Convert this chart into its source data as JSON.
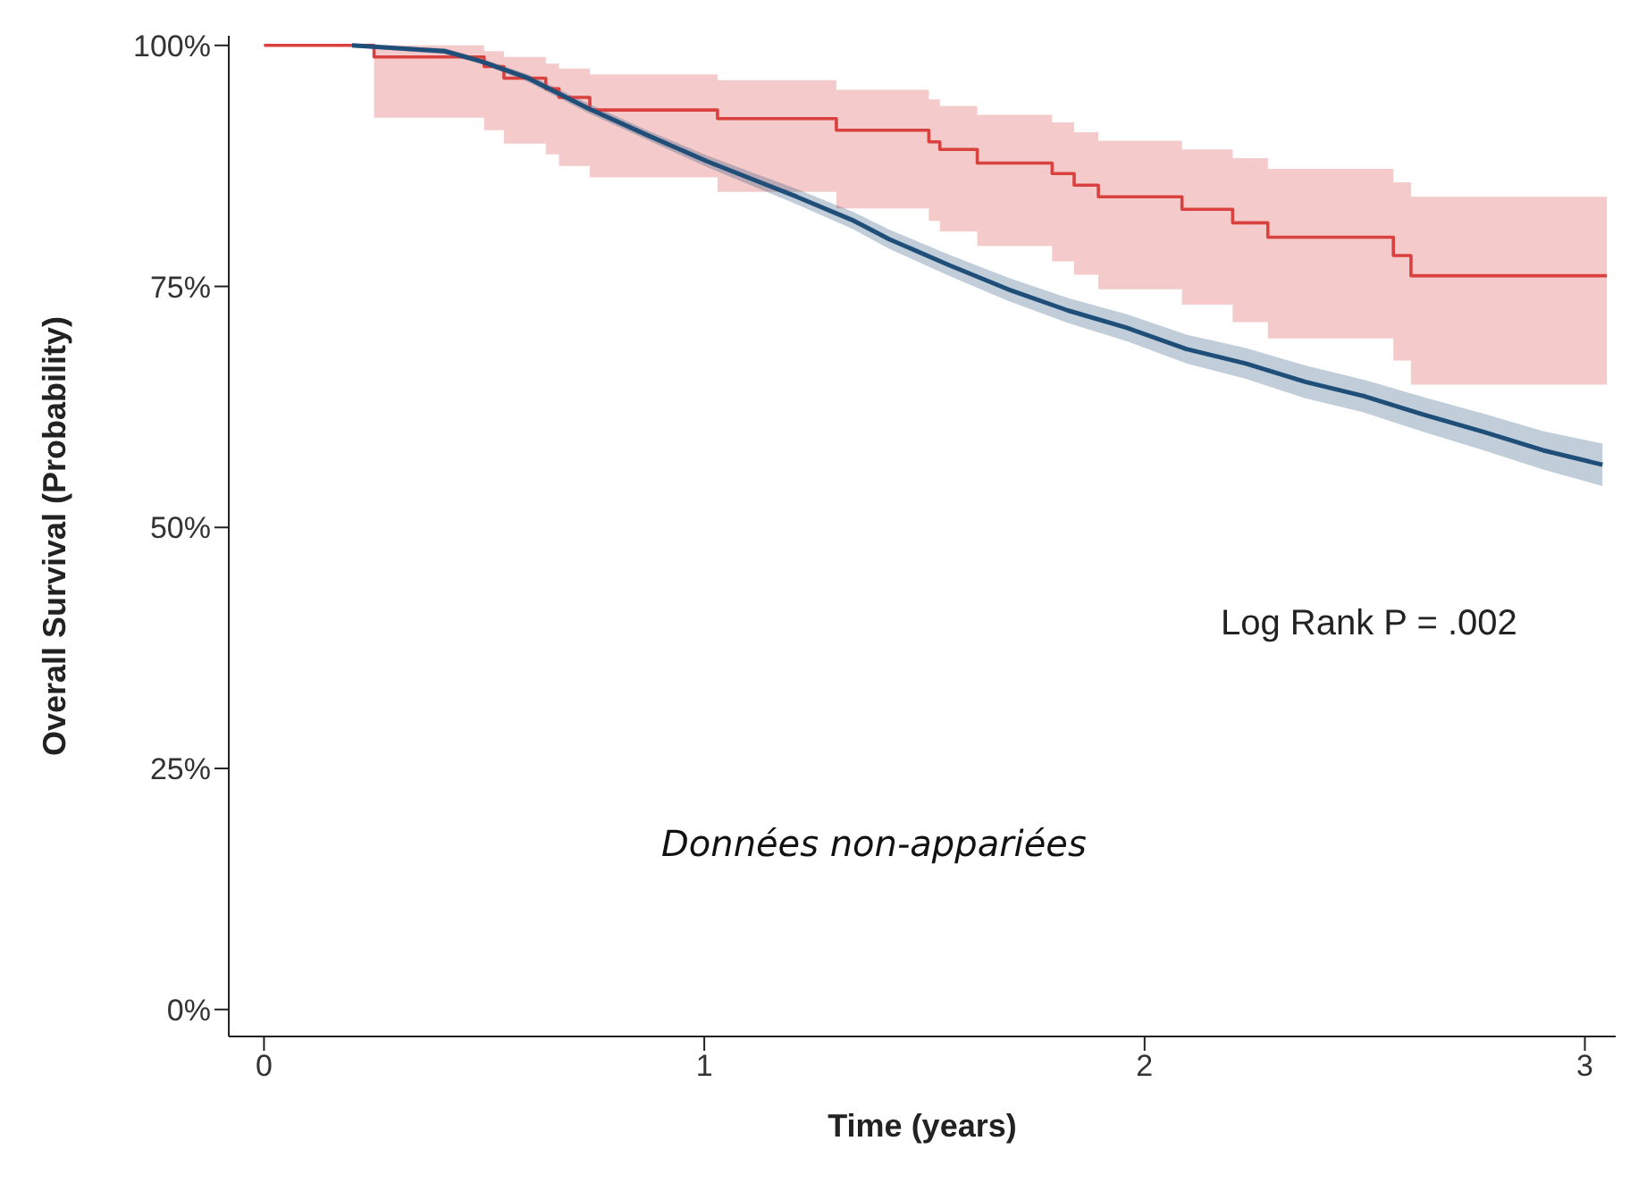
{
  "chart_data": {
    "type": "line",
    "xlabel": "Time (years)",
    "ylabel": "Overall Survival (Probability)",
    "annotations": [
      "Log Rank P = .002",
      "Données non-appariées"
    ],
    "xlim": [
      -0.08,
      3.07
    ],
    "ylim": [
      -0.028,
      1.01
    ],
    "xticks": [
      0,
      1,
      2,
      3
    ],
    "yticks": [
      {
        "value": 0,
        "label": "0%"
      },
      {
        "value": 0.25,
        "label": "25%"
      },
      {
        "value": 0.5,
        "label": "50%"
      },
      {
        "value": 0.75,
        "label": "75%"
      },
      {
        "value": 1,
        "label": "100%"
      }
    ],
    "grid": false,
    "legend": false,
    "marker": "none",
    "series": [
      {
        "type": "step",
        "color": "#d9413f",
        "x": [
          0,
          0.25,
          0.5,
          0.545,
          0.64,
          0.67,
          0.74,
          1.03,
          1.3,
          1.51,
          1.535,
          1.62,
          1.79,
          1.84,
          1.895,
          2.085,
          2.2,
          2.28,
          2.565,
          2.605,
          3.05
        ],
        "values": [
          1.0,
          0.988,
          0.978,
          0.966,
          0.955,
          0.946,
          0.933,
          0.924,
          0.912,
          0.9,
          0.892,
          0.878,
          0.867,
          0.855,
          0.843,
          0.83,
          0.816,
          0.801,
          0.782,
          0.761,
          0.761
        ],
        "upper": [
          1.0,
          1.0,
          0.994,
          0.988,
          0.981,
          0.976,
          0.97,
          0.964,
          0.954,
          0.944,
          0.937,
          0.928,
          0.92,
          0.91,
          0.901,
          0.892,
          0.883,
          0.872,
          0.858,
          0.843,
          0.843
        ],
        "lower": [
          1.0,
          0.925,
          0.912,
          0.898,
          0.887,
          0.875,
          0.863,
          0.848,
          0.831,
          0.818,
          0.807,
          0.792,
          0.776,
          0.762,
          0.747,
          0.731,
          0.713,
          0.696,
          0.673,
          0.648,
          0.648
        ]
      },
      {
        "color": "#1f4e79",
        "x": [
          0.2,
          0.41,
          0.49,
          0.6,
          0.735,
          0.87,
          1.005,
          1.11,
          1.21,
          1.34,
          1.42,
          1.556,
          1.69,
          1.826,
          1.96,
          2.095,
          2.23,
          2.365,
          2.5,
          2.634,
          2.77,
          2.905,
          3.04
        ],
        "values": [
          1.0,
          0.994,
          0.984,
          0.966,
          0.935,
          0.907,
          0.88,
          0.861,
          0.843,
          0.818,
          0.799,
          0.772,
          0.747,
          0.725,
          0.707,
          0.685,
          0.67,
          0.651,
          0.636,
          0.617,
          0.599,
          0.58,
          0.565
        ],
        "upper": [
          1.0,
          0.997,
          0.987,
          0.97,
          0.94,
          0.912,
          0.886,
          0.868,
          0.851,
          0.827,
          0.809,
          0.783,
          0.759,
          0.738,
          0.721,
          0.7,
          0.686,
          0.668,
          0.653,
          0.635,
          0.618,
          0.6,
          0.587
        ],
        "lower": [
          0.998,
          0.991,
          0.981,
          0.962,
          0.93,
          0.902,
          0.874,
          0.854,
          0.835,
          0.809,
          0.789,
          0.761,
          0.735,
          0.712,
          0.693,
          0.67,
          0.654,
          0.634,
          0.619,
          0.599,
          0.58,
          0.56,
          0.543
        ]
      }
    ]
  }
}
